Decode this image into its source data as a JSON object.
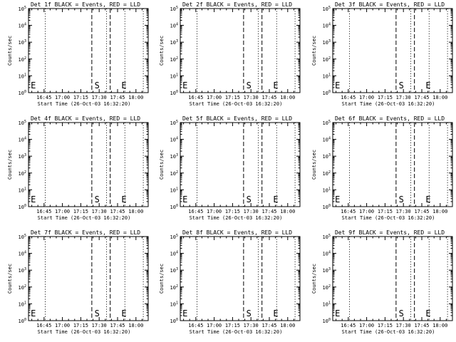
{
  "colors": {
    "events": "#000000",
    "lld": "#ff0000",
    "background": "#ffffff",
    "axes": "#000000"
  },
  "common": {
    "ylabel": "Counts/sec",
    "xlabel": "Start Time (26-Oct-03 16:32:20)",
    "x_ticks": [
      "16:45",
      "17:00",
      "17:15",
      "17:30",
      "17:45",
      "18:00"
    ],
    "y_ticks": [
      "10^0",
      "10^1",
      "10^2",
      "10^3",
      "10^4",
      "10^5"
    ],
    "y_tick_labels": [
      {
        "base": "10",
        "exp": "0"
      },
      {
        "base": "10",
        "exp": "1"
      },
      {
        "base": "10",
        "exp": "2"
      },
      {
        "base": "10",
        "exp": "3"
      },
      {
        "base": "10",
        "exp": "4"
      },
      {
        "base": "10",
        "exp": "5"
      }
    ],
    "marker_s": "S",
    "marker_e": "E"
  },
  "chart_data": [
    {
      "type": "line",
      "title": "Det 1f BLACK = Events, RED = LLD",
      "xlabel": "Start Time (26-Oct-03 16:32:20)",
      "ylabel": "Counts/sec",
      "xlim": [
        "16:32:20",
        "18:10"
      ],
      "ylim": [
        1,
        100000
      ],
      "log_y": true,
      "dotted_lines": [
        "16:46",
        "17:36",
        "17:51",
        "18:06"
      ],
      "dashed_lines": [
        "17:24",
        "17:39"
      ],
      "markers": [
        {
          "label": "E",
          "x": "16:33",
          "y": 1
        },
        {
          "label": "S",
          "x": "17:25",
          "y": 1
        },
        {
          "label": "E",
          "x": "17:47",
          "y": 1
        }
      ],
      "series": []
    },
    {
      "type": "line",
      "title": "Det 2f BLACK = Events, RED = LLD",
      "xlabel": "Start Time (26-Oct-03 16:32:20)",
      "ylabel": "Counts/sec",
      "xlim": [
        "16:32:20",
        "18:10"
      ],
      "ylim": [
        1,
        100000
      ],
      "log_y": true,
      "dotted_lines": [
        "16:46",
        "17:36",
        "17:51",
        "18:06"
      ],
      "dashed_lines": [
        "17:24",
        "17:39"
      ],
      "markers": [
        {
          "label": "E",
          "x": "16:33",
          "y": 1
        },
        {
          "label": "S",
          "x": "17:25",
          "y": 1
        },
        {
          "label": "E",
          "x": "17:47",
          "y": 1
        }
      ],
      "series": []
    },
    {
      "type": "line",
      "title": "Det 3f BLACK = Events, RED = LLD",
      "xlabel": "Start Time (26-Oct-03 16:32:20)",
      "ylabel": "Counts/sec",
      "xlim": [
        "16:32:20",
        "18:10"
      ],
      "ylim": [
        1,
        100000
      ],
      "log_y": true,
      "dotted_lines": [
        "16:46",
        "17:36",
        "17:51",
        "18:06"
      ],
      "dashed_lines": [
        "17:24",
        "17:39"
      ],
      "markers": [
        {
          "label": "E",
          "x": "16:33",
          "y": 1
        },
        {
          "label": "S",
          "x": "17:25",
          "y": 1
        },
        {
          "label": "E",
          "x": "17:47",
          "y": 1
        }
      ],
      "series": []
    },
    {
      "type": "line",
      "title": "Det 4f BLACK = Events, RED = LLD",
      "xlabel": "Start Time (26-Oct-03 16:32:20)",
      "ylabel": "Counts/sec",
      "xlim": [
        "16:32:20",
        "18:10"
      ],
      "ylim": [
        1,
        100000
      ],
      "log_y": true,
      "dotted_lines": [
        "16:46",
        "17:36",
        "17:51",
        "18:06"
      ],
      "dashed_lines": [
        "17:24",
        "17:39"
      ],
      "markers": [
        {
          "label": "E",
          "x": "16:33",
          "y": 1
        },
        {
          "label": "S",
          "x": "17:25",
          "y": 1
        },
        {
          "label": "E",
          "x": "17:47",
          "y": 1
        }
      ],
      "series": []
    },
    {
      "type": "line",
      "title": "Det 5f BLACK = Events, RED = LLD",
      "xlabel": "Start Time (26-Oct-03 16:32:20)",
      "ylabel": "Counts/sec",
      "xlim": [
        "16:32:20",
        "18:10"
      ],
      "ylim": [
        1,
        100000
      ],
      "log_y": true,
      "dotted_lines": [
        "16:46",
        "17:36",
        "17:51",
        "18:06"
      ],
      "dashed_lines": [
        "17:24",
        "17:39"
      ],
      "markers": [
        {
          "label": "E",
          "x": "16:33",
          "y": 1
        },
        {
          "label": "S",
          "x": "17:25",
          "y": 1
        },
        {
          "label": "E",
          "x": "17:47",
          "y": 1
        }
      ],
      "series": []
    },
    {
      "type": "line",
      "title": "Det 6f BLACK = Events, RED = LLD",
      "xlabel": "Start Time (26-Oct-03 16:32:20)",
      "ylabel": "Counts/sec",
      "xlim": [
        "16:32:20",
        "18:10"
      ],
      "ylim": [
        1,
        100000
      ],
      "log_y": true,
      "dotted_lines": [
        "16:46",
        "17:36",
        "17:51",
        "18:06"
      ],
      "dashed_lines": [
        "17:24",
        "17:39"
      ],
      "markers": [
        {
          "label": "E",
          "x": "16:33",
          "y": 1
        },
        {
          "label": "S",
          "x": "17:25",
          "y": 1
        },
        {
          "label": "E",
          "x": "17:47",
          "y": 1
        }
      ],
      "series": []
    },
    {
      "type": "line",
      "title": "Det 7f BLACK = Events, RED = LLD",
      "xlabel": "Start Time (26-Oct-03 16:32:20)",
      "ylabel": "Counts/sec",
      "xlim": [
        "16:32:20",
        "18:10"
      ],
      "ylim": [
        1,
        100000
      ],
      "log_y": true,
      "dotted_lines": [
        "16:46",
        "17:36",
        "17:51",
        "18:06"
      ],
      "dashed_lines": [
        "17:24",
        "17:39"
      ],
      "markers": [
        {
          "label": "E",
          "x": "16:33",
          "y": 1
        },
        {
          "label": "S",
          "x": "17:25",
          "y": 1
        },
        {
          "label": "E",
          "x": "17:47",
          "y": 1
        }
      ],
      "series": []
    },
    {
      "type": "line",
      "title": "Det 8f BLACK = Events, RED = LLD",
      "xlabel": "Start Time (26-Oct-03 16:32:20)",
      "ylabel": "Counts/sec",
      "xlim": [
        "16:32:20",
        "18:10"
      ],
      "ylim": [
        1,
        100000
      ],
      "log_y": true,
      "dotted_lines": [
        "16:46",
        "17:36",
        "17:51",
        "18:06"
      ],
      "dashed_lines": [
        "17:24",
        "17:39"
      ],
      "markers": [
        {
          "label": "E",
          "x": "16:33",
          "y": 1
        },
        {
          "label": "S",
          "x": "17:25",
          "y": 1
        },
        {
          "label": "E",
          "x": "17:47",
          "y": 1
        }
      ],
      "series": []
    },
    {
      "type": "line",
      "title": "Det 9f BLACK = Events, RED = LLD",
      "xlabel": "Start Time (26-Oct-03 16:32:20)",
      "ylabel": "Counts/sec",
      "xlim": [
        "16:32:20",
        "18:10"
      ],
      "ylim": [
        1,
        100000
      ],
      "log_y": true,
      "dotted_lines": [
        "16:46",
        "17:36",
        "17:51",
        "18:06"
      ],
      "dashed_lines": [
        "17:24",
        "17:39"
      ],
      "markers": [
        {
          "label": "E",
          "x": "16:33",
          "y": 1
        },
        {
          "label": "S",
          "x": "17:25",
          "y": 1
        },
        {
          "label": "E",
          "x": "17:47",
          "y": 1
        }
      ],
      "series": []
    }
  ]
}
